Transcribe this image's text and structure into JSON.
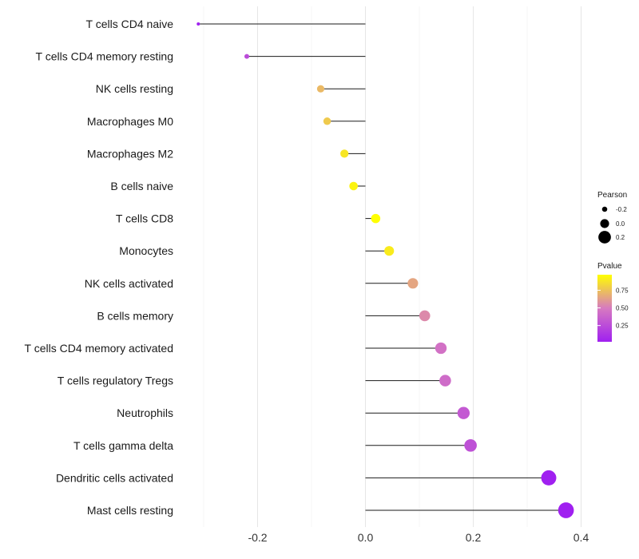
{
  "chart_data": {
    "type": "lollipop",
    "title": "",
    "xlabel": "",
    "ylabel": "",
    "xlim": [
      -0.32,
      0.4
    ],
    "x_ticks": [
      -0.2,
      0.0,
      0.2,
      0.4
    ],
    "x_tick_labels": [
      "-0.2",
      "0.0",
      "0.2",
      "0.4"
    ],
    "grid": true,
    "categories": [
      "T cells CD4 naive",
      "T cells CD4 memory resting",
      "NK cells resting",
      "Macrophages M0",
      "Macrophages M2",
      "B cells naive",
      "T cells CD8",
      "Monocytes",
      "NK cells activated",
      "B cells memory",
      "T cells CD4 memory activated",
      "T cells regulatory  Tregs ",
      "Neutrophils",
      "T cells gamma delta",
      "Dendritic cells activated",
      "Mast cells resting"
    ],
    "pearson": [
      -0.31,
      -0.22,
      -0.083,
      -0.071,
      -0.039,
      -0.022,
      0.019,
      0.044,
      0.088,
      0.11,
      0.14,
      0.148,
      0.182,
      0.195,
      0.34,
      0.372
    ],
    "pvalue": [
      0.02,
      0.25,
      0.72,
      0.78,
      0.88,
      0.93,
      0.97,
      0.9,
      0.65,
      0.55,
      0.45,
      0.42,
      0.32,
      0.28,
      0.02,
      0.02
    ],
    "legend_size": {
      "title": "Pearson",
      "labels": [
        "-0.2",
        "0.0",
        "0.2"
      ],
      "values": [
        -0.2,
        0.0,
        0.2
      ]
    },
    "legend_color": {
      "title": "Pvalue",
      "labels": [
        "0.75",
        "0.50",
        "0.25"
      ],
      "values": [
        0.75,
        0.5,
        0.25
      ],
      "range": [
        0.02,
        0.97
      ],
      "low_color": "#a020f0",
      "mid_color": "#d77ac0",
      "high_color": "#ffff00"
    },
    "legend_position": "right"
  }
}
